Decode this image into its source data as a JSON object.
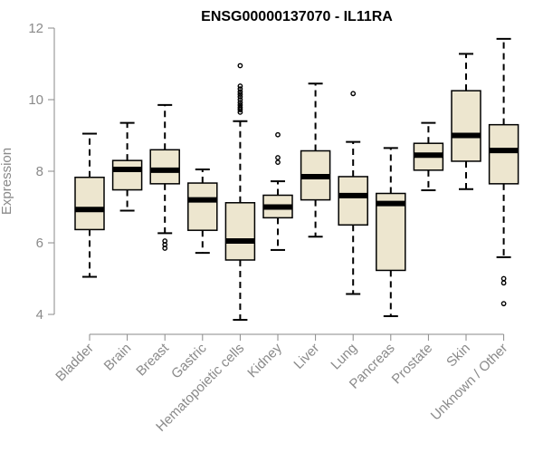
{
  "chart_data": {
    "type": "boxplot",
    "title": "ENSG00000137070 - IL11RA",
    "xlabel": "",
    "ylabel": "Expression",
    "ylim": [
      3.95,
      12.0
    ],
    "yticks": [
      4,
      6,
      8,
      10,
      12
    ],
    "ytick_labels": [
      "4",
      "6",
      "8",
      "10",
      "12"
    ],
    "box_fill": "#ede6cf",
    "box_stroke": "#000000",
    "axis_color": "#8a8a8a",
    "categories": [
      "Bladder",
      "Brain",
      "Breast",
      "Gastric",
      "Hematopoietic cells",
      "Kidney",
      "Liver",
      "Lung",
      "Pancreas",
      "Prostate",
      "Skin",
      "Unknown / Other"
    ],
    "boxes": [
      {
        "name": "Bladder",
        "whisker_low": 5.05,
        "q1": 6.37,
        "median": 6.93,
        "q3": 7.83,
        "whisker_high": 9.05,
        "outliers": []
      },
      {
        "name": "Brain",
        "whisker_low": 6.9,
        "q1": 7.48,
        "median": 8.05,
        "q3": 8.3,
        "whisker_high": 9.35,
        "outliers": []
      },
      {
        "name": "Breast",
        "whisker_low": 6.27,
        "q1": 7.65,
        "median": 8.03,
        "q3": 8.6,
        "whisker_high": 9.85,
        "outliers": [
          6.05,
          5.95,
          5.85
        ]
      },
      {
        "name": "Gastric",
        "whisker_low": 5.72,
        "q1": 6.35,
        "median": 7.2,
        "q3": 7.67,
        "whisker_high": 8.05,
        "outliers": []
      },
      {
        "name": "Hematopoietic cells",
        "whisker_low": 3.85,
        "q1": 5.52,
        "median": 6.05,
        "q3": 7.12,
        "whisker_high": 9.4,
        "outliers": [
          10.95,
          10.38,
          10.3,
          10.22,
          10.15,
          10.08,
          10.0,
          9.92,
          9.85,
          9.78,
          9.72,
          9.65
        ]
      },
      {
        "name": "Kidney",
        "whisker_low": 5.8,
        "q1": 6.7,
        "median": 7.0,
        "q3": 7.33,
        "whisker_high": 7.72,
        "outliers": [
          9.02,
          8.38,
          8.25
        ]
      },
      {
        "name": "Liver",
        "whisker_low": 6.17,
        "q1": 7.2,
        "median": 7.85,
        "q3": 8.57,
        "whisker_high": 10.45,
        "outliers": []
      },
      {
        "name": "Lung",
        "whisker_low": 4.57,
        "q1": 6.5,
        "median": 7.32,
        "q3": 7.85,
        "whisker_high": 8.82,
        "outliers": [
          10.17
        ]
      },
      {
        "name": "Pancreas",
        "whisker_low": 3.95,
        "q1": 5.23,
        "median": 7.1,
        "q3": 7.38,
        "whisker_high": 8.65,
        "outliers": []
      },
      {
        "name": "Prostate",
        "whisker_low": 7.47,
        "q1": 8.03,
        "median": 8.45,
        "q3": 8.78,
        "whisker_high": 9.35,
        "outliers": []
      },
      {
        "name": "Skin",
        "whisker_low": 7.5,
        "q1": 8.28,
        "median": 9.0,
        "q3": 10.25,
        "whisker_high": 11.28,
        "outliers": []
      },
      {
        "name": "Unknown / Other",
        "whisker_low": 5.6,
        "q1": 7.65,
        "median": 8.58,
        "q3": 9.3,
        "whisker_high": 11.7,
        "outliers": [
          5.0,
          4.88,
          4.3
        ]
      }
    ]
  }
}
